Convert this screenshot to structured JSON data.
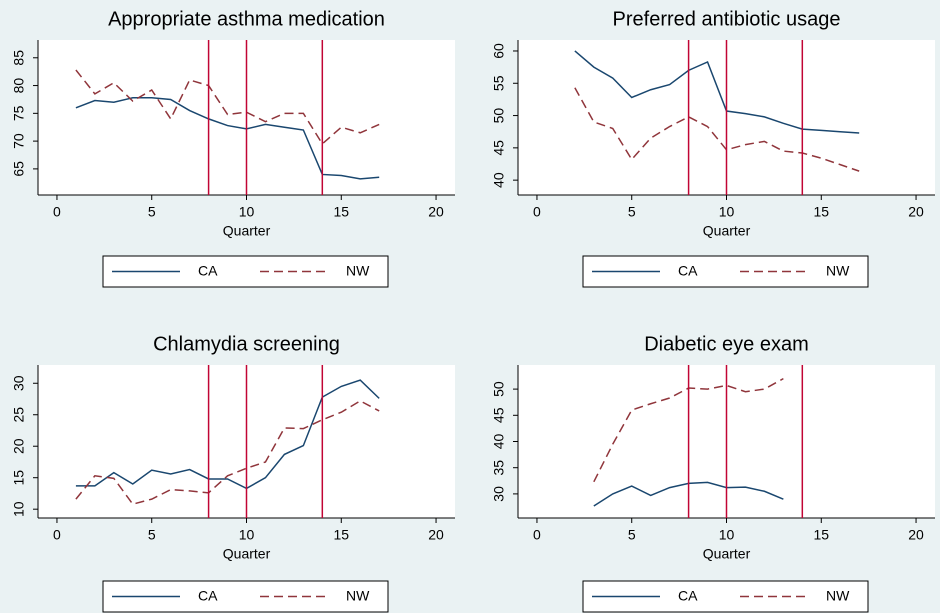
{
  "chart_data": [
    {
      "type": "line",
      "title": "Appropriate asthma medication",
      "xlabel": "Quarter",
      "x": [
        1,
        2,
        3,
        4,
        5,
        6,
        7,
        8,
        9,
        10,
        11,
        12,
        13,
        14,
        15,
        16,
        17
      ],
      "series": [
        {
          "name": "CA",
          "color": "#1a476f",
          "dash": false,
          "values": [
            76,
            77.3,
            77,
            77.8,
            77.8,
            77.5,
            75.5,
            74,
            72.8,
            72.2,
            73,
            72.5,
            72,
            64,
            63.8,
            63.2,
            63.5
          ]
        },
        {
          "name": "NW",
          "color": "#90353b",
          "dash": true,
          "values": [
            82.8,
            78.5,
            80.5,
            77.2,
            79.2,
            74,
            81,
            80,
            74.8,
            75.2,
            73.5,
            75,
            75,
            69.5,
            72.5,
            71.5,
            73
          ]
        }
      ],
      "vlines": [
        8,
        10,
        14
      ],
      "vline_color": "#c10534",
      "xlim": [
        -1,
        21
      ],
      "xticks": [
        0,
        5,
        10,
        15,
        20
      ],
      "ylim": [
        60.3,
        88.2
      ],
      "yticks": [
        65,
        70,
        75,
        80,
        85
      ],
      "grid": false,
      "legend": "bottom"
    },
    {
      "type": "line",
      "title": "Preferred antibiotic usage",
      "xlabel": "Quarter",
      "x": [
        2,
        3,
        4,
        5,
        6,
        7,
        8,
        9,
        10,
        11,
        12,
        13,
        14,
        15,
        16,
        17
      ],
      "series": [
        {
          "name": "CA",
          "color": "#1a476f",
          "dash": false,
          "values": [
            60,
            57.5,
            55.8,
            52.8,
            54,
            54.8,
            57,
            58.3,
            50.7,
            50.3,
            49.8,
            48.8,
            47.9,
            47.7,
            47.5,
            47.3
          ]
        },
        {
          "name": "NW",
          "color": "#90353b",
          "dash": true,
          "values": [
            54.3,
            49,
            48,
            43.2,
            46.5,
            48.3,
            49.8,
            48.3,
            44.7,
            45.5,
            46,
            44.5,
            44.2,
            43.4,
            42.4,
            41.4
          ]
        }
      ],
      "vlines": [
        8,
        10,
        14
      ],
      "vline_color": "#c10534",
      "xlim": [
        -1,
        21
      ],
      "xticks": [
        0,
        5,
        10,
        15,
        20
      ],
      "ylim": [
        37.7,
        61.7
      ],
      "yticks": [
        40,
        45,
        50,
        55,
        60
      ],
      "grid": false,
      "legend": "bottom"
    },
    {
      "type": "line",
      "title": "Chlamydia screening",
      "xlabel": "Quarter",
      "x": [
        1,
        2,
        3,
        4,
        5,
        6,
        7,
        8,
        9,
        10,
        11,
        12,
        13,
        14,
        15,
        16,
        17
      ],
      "series": [
        {
          "name": "CA",
          "color": "#1a476f",
          "dash": false,
          "values": [
            13.7,
            13.7,
            15.8,
            14,
            16.2,
            15.6,
            16.3,
            14.8,
            14.8,
            13.3,
            15,
            18.7,
            20.1,
            27.8,
            29.5,
            30.5,
            27.6
          ]
        },
        {
          "name": "NW",
          "color": "#90353b",
          "dash": true,
          "values": [
            11.6,
            15.3,
            14.9,
            10.8,
            11.6,
            13.1,
            12.9,
            12.6,
            15.3,
            16.5,
            17.5,
            22.9,
            22.8,
            24.2,
            25.4,
            27.2,
            25.6
          ]
        }
      ],
      "vlines": [
        8,
        10,
        14
      ],
      "vline_color": "#c10534",
      "xlim": [
        -1,
        21
      ],
      "xticks": [
        0,
        5,
        10,
        15,
        20
      ],
      "ylim": [
        8.6,
        32.9
      ],
      "yticks": [
        10,
        15,
        20,
        25,
        30
      ],
      "grid": false,
      "legend": "bottom"
    },
    {
      "type": "line",
      "title": "Diabetic eye exam",
      "xlabel": "Quarter",
      "x": [
        3,
        4,
        5,
        6,
        7,
        8,
        9,
        10,
        11,
        12,
        13
      ],
      "series": [
        {
          "name": "CA",
          "color": "#1a476f",
          "dash": false,
          "values": [
            27.7,
            30,
            31.5,
            29.7,
            31.2,
            32,
            32.2,
            31.2,
            31.3,
            30.5,
            29
          ]
        },
        {
          "name": "NW",
          "color": "#90353b",
          "dash": true,
          "values": [
            32.3,
            39.5,
            46,
            47.2,
            48.3,
            50.2,
            50,
            50.7,
            49.5,
            50,
            52
          ]
        }
      ],
      "vlines": [
        8,
        10,
        14
      ],
      "vline_color": "#c10534",
      "xlim": [
        -1,
        21
      ],
      "xticks": [
        0,
        5,
        10,
        15,
        20
      ],
      "ylim": [
        25.4,
        54.6
      ],
      "yticks": [
        30,
        35,
        40,
        45,
        50
      ],
      "grid": false,
      "legend": "bottom"
    }
  ]
}
